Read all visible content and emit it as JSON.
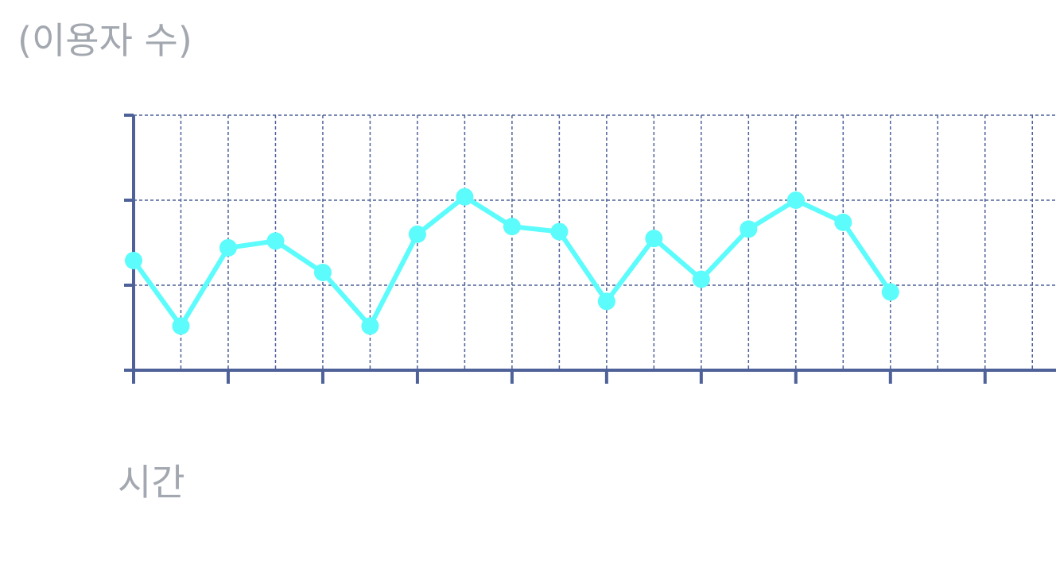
{
  "chart_data": {
    "type": "line",
    "title": "",
    "ylabel": "(이용자 수)",
    "xlabel": "시간",
    "x": [
      0,
      1,
      2,
      3,
      4,
      5,
      6,
      7,
      8,
      9,
      10,
      11,
      12,
      13,
      14,
      15,
      16
    ],
    "series": [
      {
        "values": [
          1.29,
          0.52,
          1.44,
          1.52,
          1.15,
          0.52,
          1.6,
          2.04,
          1.69,
          1.63,
          0.81,
          1.55,
          1.07,
          1.66,
          2.0,
          1.74,
          0.92
        ]
      }
    ],
    "xlim": [
      0,
      19.5
    ],
    "ylim": [
      0,
      3
    ],
    "grid": true,
    "legend": "none",
    "colors": {
      "line": "#5cfcfc",
      "axis": "#4e6299",
      "grid": "#4e6299",
      "label": "#a3a8b0"
    }
  }
}
